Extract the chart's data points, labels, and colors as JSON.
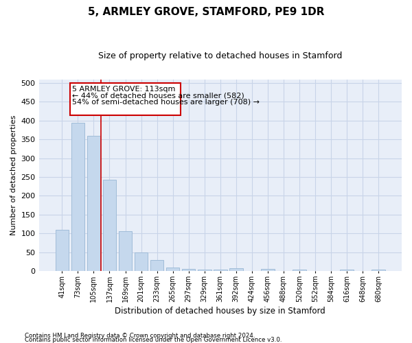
{
  "title": "5, ARMLEY GROVE, STAMFORD, PE9 1DR",
  "subtitle": "Size of property relative to detached houses in Stamford",
  "xlabel": "Distribution of detached houses by size in Stamford",
  "ylabel": "Number of detached properties",
  "footer_line1": "Contains HM Land Registry data © Crown copyright and database right 2024.",
  "footer_line2": "Contains public sector information licensed under the Open Government Licence v3.0.",
  "categories": [
    "41sqm",
    "73sqm",
    "105sqm",
    "137sqm",
    "169sqm",
    "201sqm",
    "233sqm",
    "265sqm",
    "297sqm",
    "329sqm",
    "361sqm",
    "392sqm",
    "424sqm",
    "456sqm",
    "488sqm",
    "520sqm",
    "552sqm",
    "584sqm",
    "616sqm",
    "648sqm",
    "680sqm"
  ],
  "values": [
    110,
    395,
    360,
    243,
    105,
    50,
    30,
    10,
    5,
    4,
    4,
    8,
    0,
    5,
    0,
    3,
    0,
    0,
    3,
    0,
    3
  ],
  "bar_color": "#c5d8ed",
  "bar_edge_color": "#a0bcd8",
  "grid_color": "#c8d4e8",
  "background_color": "#e8eef8",
  "annotation_text_line1": "5 ARMLEY GROVE: 113sqm",
  "annotation_text_line2": "← 44% of detached houses are smaller (582)",
  "annotation_text_line3": "54% of semi-detached houses are larger (708) →",
  "annotation_box_color": "#cc0000",
  "red_line_x": 2.45,
  "ylim": [
    0,
    510
  ],
  "yticks": [
    0,
    50,
    100,
    150,
    200,
    250,
    300,
    350,
    400,
    450,
    500
  ],
  "title_fontsize": 11,
  "subtitle_fontsize": 9
}
